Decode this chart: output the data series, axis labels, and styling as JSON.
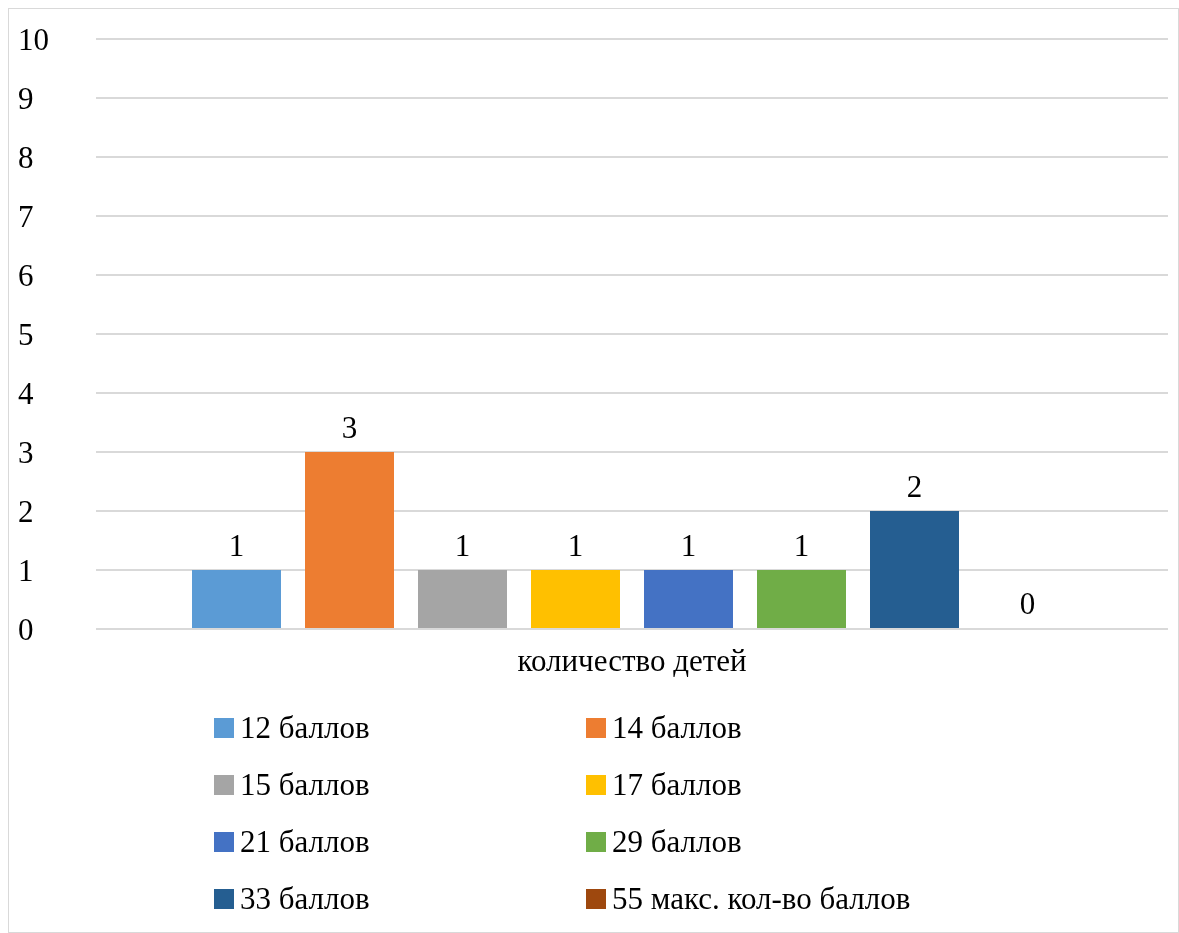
{
  "chart_data": {
    "type": "bar",
    "categories": [
      "количество детей"
    ],
    "series": [
      {
        "name": "12 баллов",
        "color": "#5b9bd5",
        "values": [
          1
        ]
      },
      {
        "name": "14 баллов",
        "color": "#ed7d31",
        "values": [
          3
        ]
      },
      {
        "name": "15 баллов",
        "color": "#a5a5a5",
        "values": [
          1
        ]
      },
      {
        "name": "17 баллов",
        "color": "#ffc000",
        "values": [
          1
        ]
      },
      {
        "name": "21 баллов",
        "color": "#4472c4",
        "values": [
          1
        ]
      },
      {
        "name": "29 баллов",
        "color": "#70ad47",
        "values": [
          1
        ]
      },
      {
        "name": "33 баллов",
        "color": "#255e91",
        "values": [
          2
        ]
      },
      {
        "name": "55 макс. кол-во баллов",
        "color": "#9e480e",
        "values": [
          0
        ]
      }
    ],
    "ylim": [
      0,
      10
    ],
    "yticks": [
      0,
      1,
      2,
      3,
      4,
      5,
      6,
      7,
      8,
      9,
      10
    ],
    "grid": "y",
    "legend": "bottom",
    "data_labels": true
  }
}
